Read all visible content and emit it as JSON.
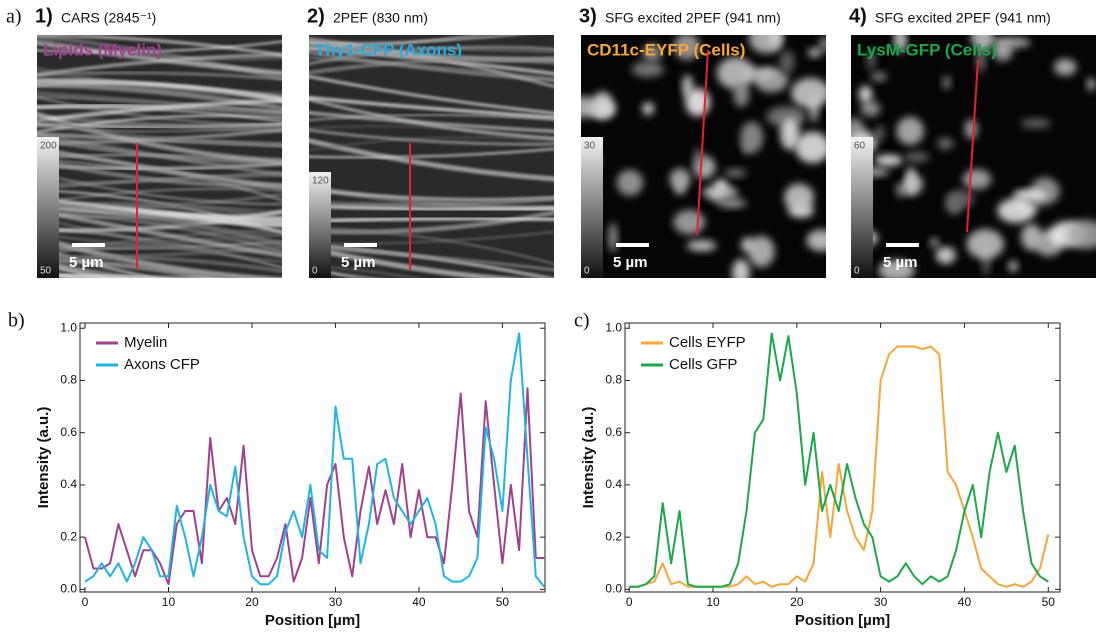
{
  "panel_labels": {
    "a": "a)",
    "b": "b)",
    "c": "c)"
  },
  "images": [
    {
      "number": "1)",
      "method": "CARS (2845⁻¹)",
      "stain": "Lipids (Myelin)",
      "stain_color": "#a0418f",
      "colorbar": {
        "max": 200,
        "min": 50
      },
      "scale_bar": "5 µm"
    },
    {
      "number": "2)",
      "method": "2PEF (830 nm)",
      "stain": "Thy1-CFP (Axons)",
      "stain_color": "#2aa9e0",
      "colorbar": {
        "max": 120,
        "min": 0
      },
      "scale_bar": "5 µm"
    },
    {
      "number": "3)",
      "method": "SFG excited 2PEF (941 nm)",
      "stain": "CD11c-EYFP (Cells)",
      "stain_color": "#f7a535",
      "colorbar": {
        "max": 30,
        "min": 0
      },
      "scale_bar": "5 µm"
    },
    {
      "number": "4)",
      "method": "SFG excited 2PEF (941 nm)",
      "stain": "LysM-GFP (Cells)",
      "stain_color": "#1aa84a",
      "colorbar": {
        "max": 60,
        "min": 0
      },
      "scale_bar": "5 µm"
    }
  ],
  "chart_data": [
    {
      "type": "line",
      "xlabel": "Position [µm]",
      "ylabel": "Intensity (a.u.)",
      "legend": "upper left",
      "x": [
        0,
        1,
        2,
        3,
        4,
        5,
        6,
        7,
        8,
        9,
        10,
        11,
        12,
        13,
        14,
        15,
        16,
        17,
        18,
        19,
        20,
        21,
        22,
        23,
        24,
        25,
        26,
        27,
        28,
        29,
        30,
        31,
        32,
        33,
        34,
        35,
        36,
        37,
        38,
        39,
        40,
        41,
        42,
        43,
        44,
        45,
        46,
        47,
        48,
        49,
        50,
        51,
        52,
        53,
        54,
        55
      ],
      "series": [
        {
          "name": "Myelin",
          "color": "#a0418f",
          "values": [
            0.2,
            0.08,
            0.08,
            0.1,
            0.25,
            0.15,
            0.05,
            0.15,
            0.15,
            0.1,
            0.02,
            0.25,
            0.3,
            0.3,
            0.1,
            0.58,
            0.3,
            0.35,
            0.25,
            0.55,
            0.15,
            0.05,
            0.05,
            0.12,
            0.25,
            0.03,
            0.12,
            0.35,
            0.1,
            0.4,
            0.48,
            0.2,
            0.05,
            0.3,
            0.47,
            0.25,
            0.38,
            0.25,
            0.48,
            0.2,
            0.38,
            0.2,
            0.2,
            0.1,
            0.4,
            0.75,
            0.3,
            0.2,
            0.72,
            0.4,
            0.1,
            0.4,
            0.15,
            0.77,
            0.12,
            0.12
          ]
        },
        {
          "name": "Axons CFP",
          "color": "#1fb4e6",
          "values": [
            0.03,
            0.05,
            0.1,
            0.05,
            0.1,
            0.03,
            0.1,
            0.2,
            0.15,
            0.05,
            0.05,
            0.32,
            0.2,
            0.05,
            0.2,
            0.4,
            0.3,
            0.28,
            0.47,
            0.2,
            0.05,
            0.02,
            0.02,
            0.05,
            0.22,
            0.3,
            0.2,
            0.4,
            0.15,
            0.12,
            0.7,
            0.5,
            0.5,
            0.1,
            0.25,
            0.48,
            0.5,
            0.35,
            0.3,
            0.25,
            0.3,
            0.35,
            0.25,
            0.05,
            0.03,
            0.03,
            0.05,
            0.12,
            0.62,
            0.5,
            0.3,
            0.8,
            0.98,
            0.5,
            0.05,
            0.01
          ]
        }
      ],
      "xlim": [
        -0.6,
        55.1
      ],
      "xticks": [
        0,
        10,
        20,
        30,
        40,
        50
      ],
      "ylim": [
        -0.01,
        1.02
      ],
      "yticks": [
        {
          "value": 0,
          "label": "0.0"
        },
        0.2,
        0.4,
        0.6,
        0.8,
        {
          "value": 1,
          "label": "1.0"
        }
      ]
    },
    {
      "type": "line",
      "xlabel": "Position [µm]",
      "ylabel": "Intensity (a.u.)",
      "legend": "upper left",
      "x": [
        0,
        1,
        2,
        3,
        4,
        5,
        6,
        7,
        8,
        9,
        10,
        11,
        12,
        13,
        14,
        15,
        16,
        17,
        18,
        19,
        20,
        21,
        22,
        23,
        24,
        25,
        26,
        27,
        28,
        29,
        30,
        31,
        32,
        33,
        34,
        35,
        36,
        37,
        38,
        39,
        40,
        41,
        42,
        43,
        44,
        45,
        46,
        47,
        48,
        49,
        50
      ],
      "series": [
        {
          "name": "Cells EYFP",
          "color": "#f7a535",
          "values": [
            0.01,
            0.01,
            0.02,
            0.03,
            0.1,
            0.02,
            0.03,
            0.01,
            0.01,
            0.01,
            0.01,
            0.01,
            0.01,
            0.02,
            0.05,
            0.02,
            0.03,
            0.01,
            0.02,
            0.02,
            0.05,
            0.03,
            0.1,
            0.45,
            0.2,
            0.48,
            0.3,
            0.2,
            0.15,
            0.3,
            0.8,
            0.9,
            0.93,
            0.93,
            0.93,
            0.92,
            0.93,
            0.9,
            0.45,
            0.4,
            0.3,
            0.2,
            0.08,
            0.05,
            0.02,
            0.01,
            0.02,
            0.01,
            0.03,
            0.08,
            0.21
          ]
        },
        {
          "name": "Cells GFP",
          "color": "#1aa84a",
          "values": [
            0.01,
            0.01,
            0.02,
            0.05,
            0.33,
            0.1,
            0.3,
            0.02,
            0.01,
            0.01,
            0.01,
            0.01,
            0.02,
            0.1,
            0.3,
            0.6,
            0.65,
            0.98,
            0.8,
            0.97,
            0.75,
            0.4,
            0.6,
            0.3,
            0.4,
            0.3,
            0.48,
            0.35,
            0.25,
            0.2,
            0.05,
            0.03,
            0.05,
            0.1,
            0.05,
            0.02,
            0.05,
            0.03,
            0.05,
            0.15,
            0.3,
            0.4,
            0.2,
            0.45,
            0.6,
            0.45,
            0.55,
            0.3,
            0.1,
            0.05,
            0.03
          ]
        }
      ],
      "xlim": [
        -0.5,
        51.4
      ],
      "xticks": [
        0,
        10,
        20,
        30,
        40,
        50
      ],
      "ylim": [
        -0.01,
        1.02
      ],
      "yticks": [
        {
          "value": 0,
          "label": "0.0"
        },
        0.2,
        0.4,
        0.6,
        0.8,
        {
          "value": 1,
          "label": "1.0"
        }
      ]
    }
  ]
}
